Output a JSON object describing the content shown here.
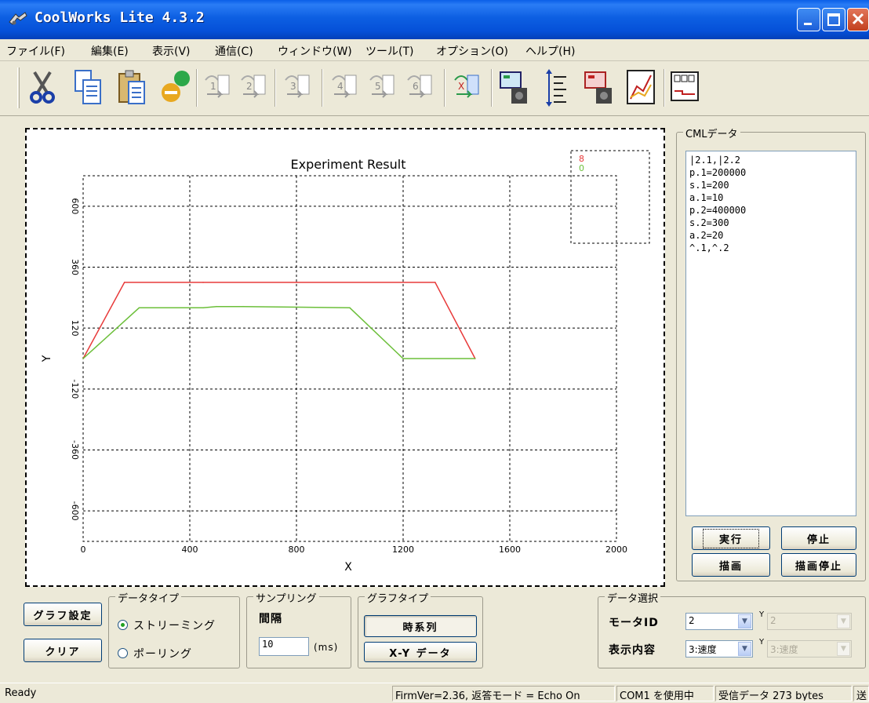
{
  "window": {
    "title": "CoolWorks Lite 4.3.2"
  },
  "menu": [
    "ファイル(F)",
    "編集(E)",
    "表示(V)",
    "通信(C)",
    "ウィンドウ(W)",
    "ツール(T)",
    "オプション(O)",
    "ヘルプ(H)"
  ],
  "toolbar": {
    "icons": [
      "cut-icon",
      "copy-icon",
      "paste-icon",
      "connect-icon",
      "macro-1-icon",
      "macro-2-icon",
      "macro-3-icon",
      "macro-4-icon",
      "macro-5-icon",
      "macro-6-icon",
      "macro-x-icon",
      "motor-config-icon",
      "list-indent-icon",
      "motor-run-icon",
      "graph-icon",
      "layout-icon"
    ],
    "macro_labels": [
      "1",
      "2",
      "3",
      "4",
      "5",
      "6",
      "X"
    ]
  },
  "chart_data": {
    "type": "line",
    "title": "Experiment Result",
    "xlabel": "X",
    "ylabel": "Y",
    "xlim": [
      0,
      2000
    ],
    "ylim": [
      -720,
      720
    ],
    "x_ticks": [
      0,
      400,
      800,
      1200,
      1600,
      2000
    ],
    "y_ticks": [
      -600,
      -360,
      -120,
      120,
      360,
      600
    ],
    "tick_labels_x": [
      "0",
      "400",
      "800",
      "1200",
      "1600",
      "2000"
    ],
    "tick_labels_y": [
      "-600",
      "-360",
      "-120",
      "120",
      "360",
      "600"
    ],
    "grid": true,
    "legend_position": "top-right",
    "legend": [
      "8",
      "0"
    ],
    "series": [
      {
        "name": "8",
        "color": "#e83a3a",
        "x": [
          0,
          155,
          450,
          800,
          1320,
          1470
        ],
        "y": [
          0,
          300,
          300,
          300,
          300,
          0
        ]
      },
      {
        "name": "0",
        "color": "#6cbf3a",
        "x": [
          0,
          210,
          450,
          500,
          600,
          1000,
          1200,
          1470
        ],
        "y": [
          0,
          200,
          200,
          205,
          205,
          200,
          0,
          0
        ]
      }
    ]
  },
  "cml": {
    "title": "CMLデータ",
    "text": "|2.1,|2.2\np.1=200000\ns.1=200\na.1=10\np.2=400000\ns.2=300\na.2=20\n^.1,^.2",
    "buttons": {
      "run": "実行",
      "stop": "停止",
      "draw": "描画",
      "draw_stop": "描画停止"
    }
  },
  "bottom": {
    "graph_settings": "グラフ設定",
    "clear": "クリア",
    "data_type": {
      "title": "データタイプ",
      "streaming": "ストリーミング",
      "polling": "ポーリング",
      "selected": "streaming"
    },
    "sampling": {
      "title": "サンプリング",
      "interval_label": "間隔",
      "value": "10",
      "unit": "(ms)"
    },
    "graph_type": {
      "title": "グラフタイプ",
      "timeseries": "時系列",
      "xy": "X-Y データ"
    },
    "data_select": {
      "title": "データ選択",
      "motor_label": "モータID",
      "motor_value": "2",
      "motor_y_value": "2",
      "display_label": "表示内容",
      "display_value": "3:速度",
      "display_y_value": "3:速度",
      "y_label": "Y"
    }
  },
  "status": {
    "ready": "Ready",
    "firm": "FirmVer=2.36, 返答モード = Echo On",
    "com": "COM1 を使用中",
    "received": "受信データ  273 bytes",
    "send": "送"
  }
}
